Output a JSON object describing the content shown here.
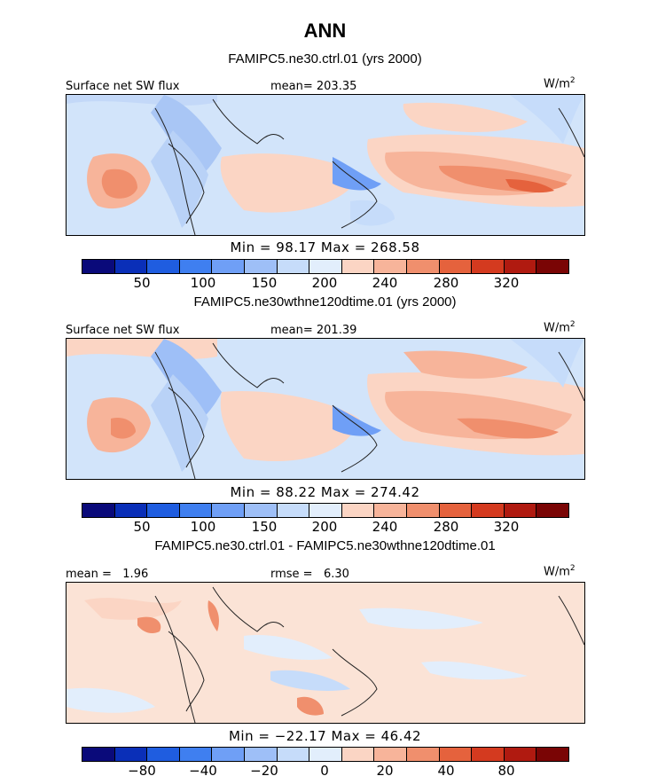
{
  "figure": {
    "title": "ANN",
    "units": "W/m",
    "units_sup": "2"
  },
  "palette": [
    "#0a0a7a",
    "#0a2fb8",
    "#1f5de0",
    "#3f7ff0",
    "#6f9ff6",
    "#9ebff7",
    "#c6dcfa",
    "#e2eefc",
    "#fbd5c4",
    "#f7b49a",
    "#f08f6d",
    "#e5623d",
    "#d43a1f",
    "#b01a10",
    "#7a0505"
  ],
  "panels": [
    {
      "subtitle": "FAMIPC5.ne30.ctrl.01 (yrs 2000)",
      "left_label": "Surface net SW flux",
      "center_label": "mean= 203.35",
      "minmax": "Min =  98.17 Max = 268.58",
      "ticks": [
        "50",
        "100",
        "150",
        "200",
        "240",
        "280",
        "320"
      ]
    },
    {
      "subtitle": "FAMIPC5.ne30wthne120dtime.01 (yrs 2000)",
      "left_label": "Surface net SW flux",
      "center_label": "mean= 201.39",
      "minmax": "Min =  88.22 Max = 274.42",
      "ticks": [
        "50",
        "100",
        "150",
        "200",
        "240",
        "280",
        "320"
      ]
    },
    {
      "subtitle": "FAMIPC5.ne30.ctrl.01 - FAMIPC5.ne30wthne120dtime.01",
      "left_label": "mean =   1.96",
      "center_label": "rmse =   6.30",
      "minmax": "Min = −22.17 Max =  46.42",
      "ticks": [
        "−80",
        "−40",
        "−20",
        "0",
        "20",
        "40",
        "80"
      ]
    }
  ]
}
